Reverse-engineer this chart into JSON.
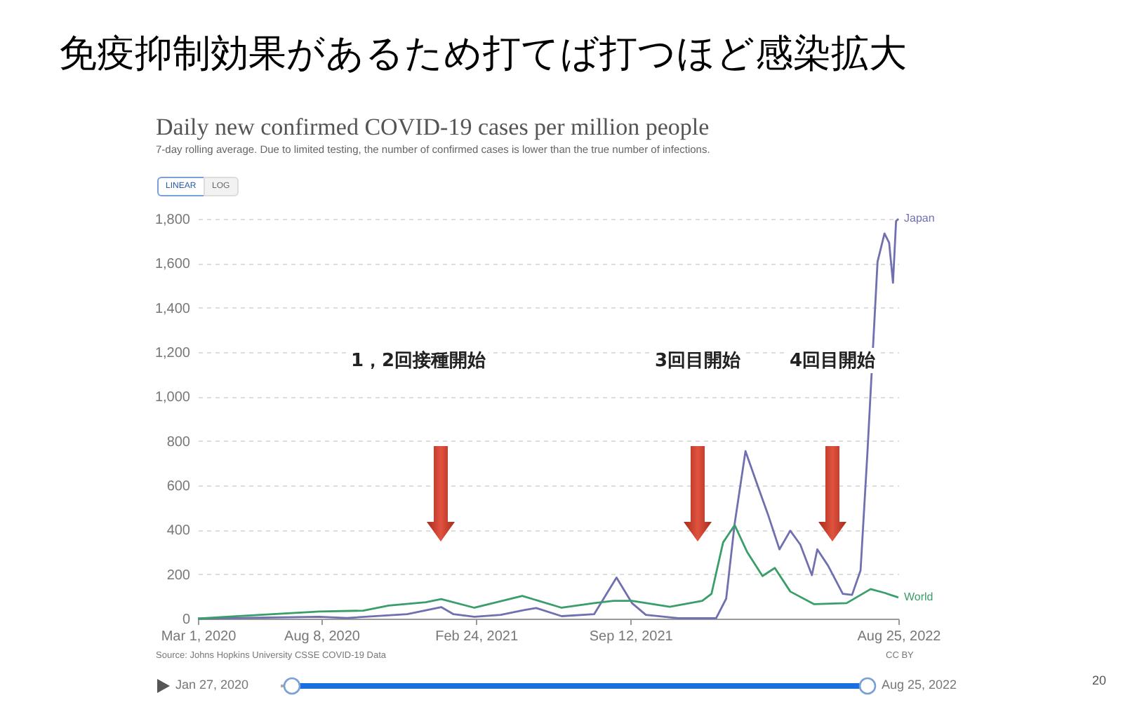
{
  "chart_data": {
    "type": "line",
    "title": "Daily new confirmed COVID-19 cases per million people",
    "subtitle": "7-day rolling average. Due to limited testing, the number of confirmed cases is lower than the true number of infections.",
    "xlim": [
      "2020-03-01",
      "2022-08-25"
    ],
    "xticks": [
      {
        "value": "2020-03-01",
        "label": "Mar 1, 2020"
      },
      {
        "value": "2020-08-08",
        "label": "Aug 8, 2020"
      },
      {
        "value": "2021-02-24",
        "label": "Feb 24, 2021"
      },
      {
        "value": "2021-09-12",
        "label": "Sep 12, 2021"
      },
      {
        "value": "2022-08-25",
        "label": "Aug 25, 2022"
      }
    ],
    "ylim": [
      0,
      1800
    ],
    "yticks": [
      0,
      200,
      400,
      600,
      800,
      {
        "value": 1000,
        "label": "1,000"
      },
      {
        "value": 1200,
        "label": "1,200"
      },
      {
        "value": 1400,
        "label": "1,400"
      },
      {
        "value": 1600,
        "label": "1,600"
      },
      {
        "value": 1800,
        "label": "1,800"
      }
    ],
    "grid": "y",
    "series": [
      {
        "name": "Japan",
        "color": "#7070b0",
        "x": [
          "2020-03-01",
          "2020-08-05",
          "2020-09-10",
          "2020-11-27",
          "2021-01-10",
          "2021-01-26",
          "2021-02-22",
          "2021-03-28",
          "2021-04-27",
          "2021-05-13",
          "2021-06-15",
          "2021-07-27",
          "2021-08-25",
          "2021-09-14",
          "2021-10-02",
          "2021-11-13",
          "2022-01-01",
          "2022-01-14",
          "2022-01-25",
          "2022-02-08",
          "2022-02-24",
          "2022-03-09",
          "2022-03-24",
          "2022-04-07",
          "2022-04-20",
          "2022-05-05",
          "2022-05-12",
          "2022-05-26",
          "2022-06-14",
          "2022-06-26",
          "2022-07-07",
          "2022-07-16",
          "2022-07-29",
          "2022-08-07",
          "2022-08-13",
          "2022-08-18",
          "2022-08-22",
          "2022-08-25"
        ],
        "values": [
          0,
          8,
          3,
          20,
          52,
          20,
          8,
          17,
          38,
          48,
          11,
          20,
          185,
          70,
          17,
          2,
          2,
          90,
          428,
          754,
          596,
          470,
          312,
          396,
          333,
          196,
          312,
          238,
          112,
          107,
          217,
          754,
          1607,
          1734,
          1692,
          1512,
          1790,
          1800
        ]
      },
      {
        "name": "World",
        "color": "#3a9e6a",
        "x": [
          "2020-03-01",
          "2020-04-15",
          "2020-08-05",
          "2020-10-01",
          "2020-11-03",
          "2020-12-21",
          "2021-01-10",
          "2021-02-22",
          "2021-04-25",
          "2021-06-15",
          "2021-07-27",
          "2021-08-21",
          "2021-09-14",
          "2021-11-02",
          "2021-12-14",
          "2021-12-26",
          "2022-01-10",
          "2022-01-25",
          "2022-02-10",
          "2022-03-02",
          "2022-03-18",
          "2022-04-07",
          "2022-05-08",
          "2022-06-19",
          "2022-07-20",
          "2022-08-07",
          "2022-08-25"
        ],
        "values": [
          0,
          10,
          32,
          36,
          59,
          74,
          88,
          49,
          102,
          49,
          70,
          80,
          80,
          53,
          80,
          112,
          343,
          421,
          301,
          192,
          228,
          122,
          65,
          70,
          133,
          116,
          95
        ]
      }
    ],
    "annotations": [
      "免疫抑制効果があるため打てば打つほど感染拡大",
      "1，2回接種開始",
      "3回目開始",
      "4回目開始",
      "LINEAR",
      "LOG",
      "Source: Johns Hopkins University CSSE COVID-19 Data",
      "CC BY",
      "Jan 27, 2020",
      "Aug 25, 2022",
      "20"
    ]
  }
}
